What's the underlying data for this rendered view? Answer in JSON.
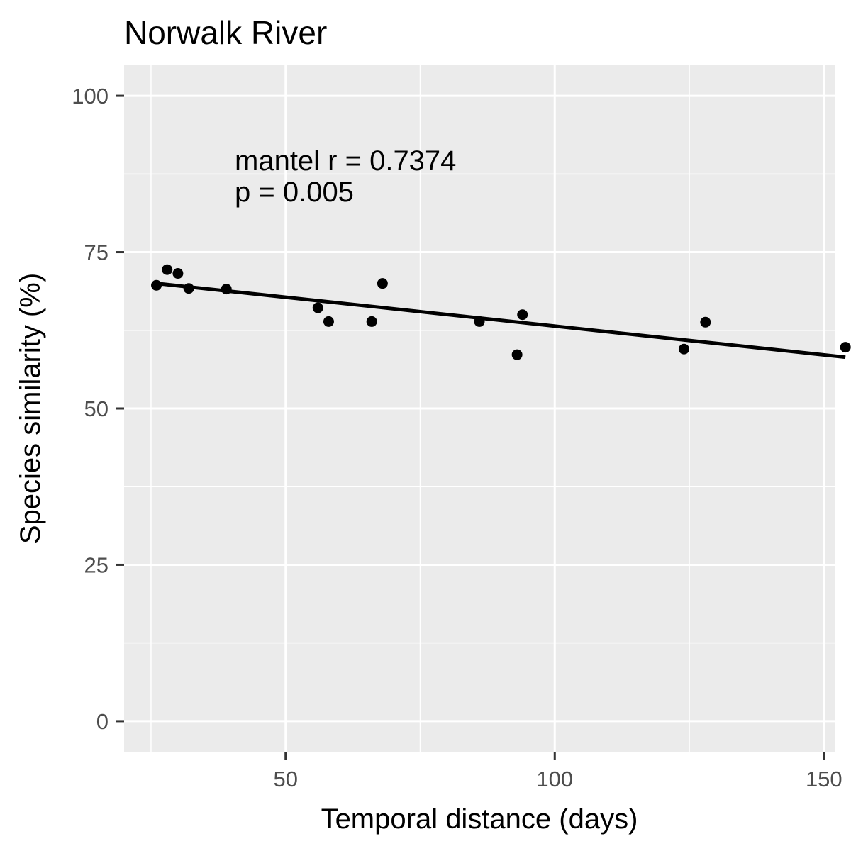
{
  "chart_data": {
    "type": "scatter",
    "title": "Norwalk River",
    "xlabel": "Temporal distance (days)",
    "ylabel": "Species similarity (%)",
    "xlim": [
      20,
      152
    ],
    "ylim": [
      -5,
      105
    ],
    "x_ticks": [
      50,
      100,
      150
    ],
    "y_ticks": [
      0,
      25,
      50,
      75,
      100
    ],
    "grid": true,
    "annotation": [
      "mantel r = 0.7374",
      "p = 0.005"
    ],
    "points": [
      {
        "x": 26,
        "y": 69.7
      },
      {
        "x": 28,
        "y": 72.2
      },
      {
        "x": 30,
        "y": 71.6
      },
      {
        "x": 32,
        "y": 69.2
      },
      {
        "x": 39,
        "y": 69.1
      },
      {
        "x": 56,
        "y": 66.1
      },
      {
        "x": 58,
        "y": 63.9
      },
      {
        "x": 66,
        "y": 63.9
      },
      {
        "x": 68,
        "y": 70.0
      },
      {
        "x": 86,
        "y": 63.9
      },
      {
        "x": 93,
        "y": 58.6
      },
      {
        "x": 94,
        "y": 65.0
      },
      {
        "x": 124,
        "y": 59.5
      },
      {
        "x": 128,
        "y": 63.8
      },
      {
        "x": 154,
        "y": 59.8
      }
    ],
    "trend_line": {
      "x": [
        26,
        154
      ],
      "y": [
        70.0,
        58.2
      ]
    }
  }
}
